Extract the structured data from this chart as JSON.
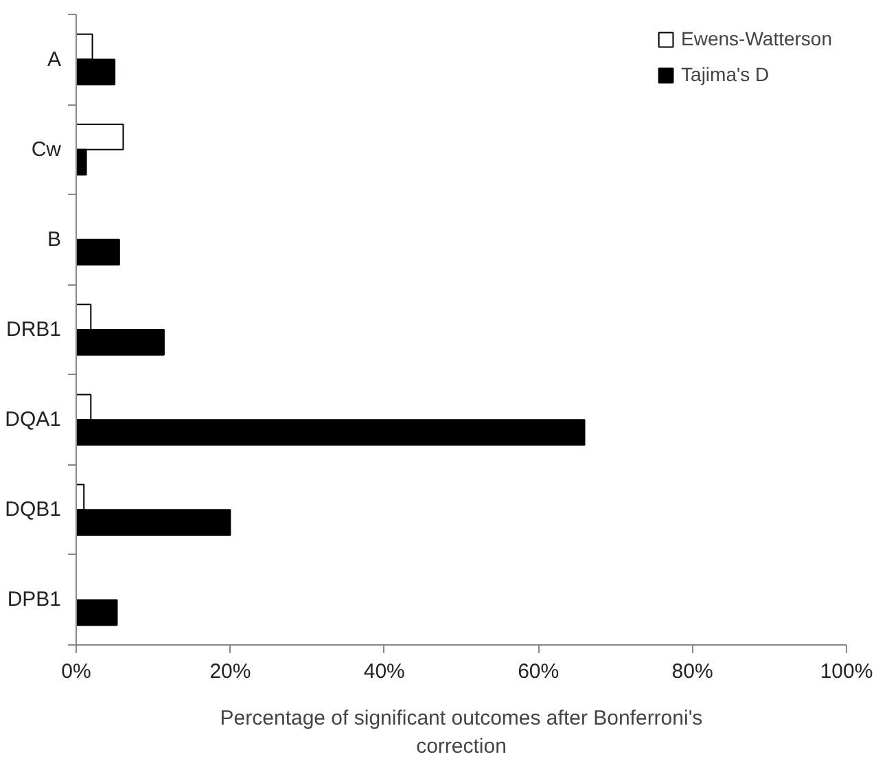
{
  "chart_data": {
    "type": "bar",
    "orientation": "horizontal",
    "xlabel": "Percentage of significant outcomes after Bonferroni's correction",
    "categories": [
      "A",
      "Cw",
      "B",
      "DRB1",
      "DQA1",
      "DQB1",
      "DPB1"
    ],
    "series": [
      {
        "name": "Ewens-Watterson",
        "color": "#ffffff",
        "values": [
          2.1,
          6.1,
          0,
          1.9,
          1.9,
          1.0,
          0
        ]
      },
      {
        "name": "Tajima's D",
        "color": "#000000",
        "values": [
          5.0,
          1.3,
          5.6,
          11.4,
          66,
          20.0,
          5.3
        ]
      }
    ],
    "xlim": [
      0,
      100
    ],
    "xticks": [
      {
        "value": 0,
        "label": "0%"
      },
      {
        "value": 20,
        "label": "20%"
      },
      {
        "value": 40,
        "label": "40%"
      },
      {
        "value": 60,
        "label": "60%"
      },
      {
        "value": 80,
        "label": "80%"
      },
      {
        "value": 100,
        "label": "100%"
      }
    ],
    "grid": false,
    "legend": "top right"
  }
}
